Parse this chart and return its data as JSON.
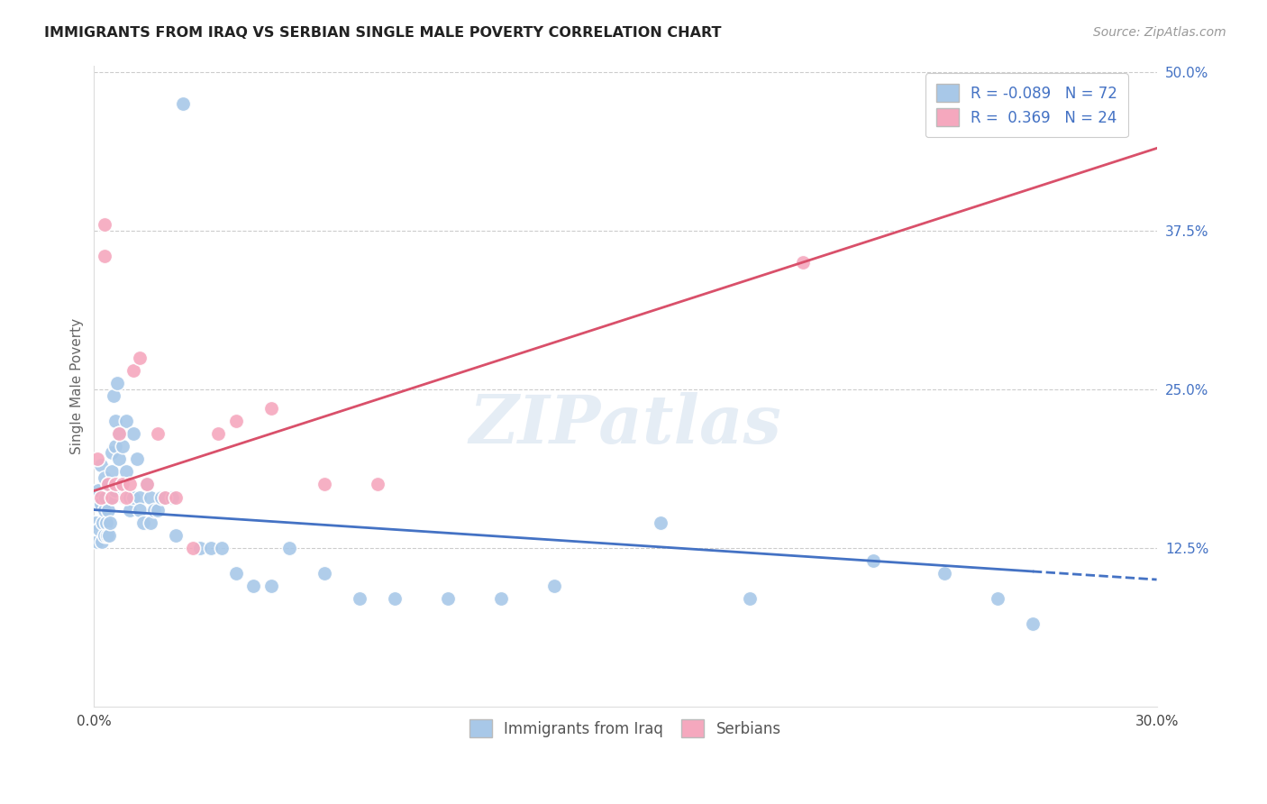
{
  "title": "IMMIGRANTS FROM IRAQ VS SERBIAN SINGLE MALE POVERTY CORRELATION CHART",
  "source": "Source: ZipAtlas.com",
  "ylabel": "Single Male Poverty",
  "xlim": [
    0.0,
    0.3
  ],
  "ylim": [
    0.0,
    0.505
  ],
  "yticks": [
    0.125,
    0.25,
    0.375,
    0.5
  ],
  "yticklabels": [
    "12.5%",
    "25.0%",
    "37.5%",
    "50.0%"
  ],
  "watermark": "ZIPatlas",
  "legend_r_iraq": "-0.089",
  "legend_n_iraq": "72",
  "legend_r_serbian": "0.369",
  "legend_n_serbian": "24",
  "iraq_color": "#a8c8e8",
  "serbian_color": "#f5a8be",
  "iraq_line_color": "#4472c4",
  "serbian_line_color": "#d9506a",
  "background_color": "#ffffff",
  "grid_color": "#cccccc",
  "iraq_x": [
    0.0005,
    0.001,
    0.001,
    0.0012,
    0.0015,
    0.002,
    0.002,
    0.0022,
    0.0025,
    0.003,
    0.003,
    0.003,
    0.0032,
    0.0035,
    0.0038,
    0.004,
    0.004,
    0.0042,
    0.0045,
    0.005,
    0.005,
    0.005,
    0.0055,
    0.006,
    0.006,
    0.006,
    0.0065,
    0.007,
    0.007,
    0.0075,
    0.008,
    0.0085,
    0.009,
    0.009,
    0.0095,
    0.01,
    0.01,
    0.011,
    0.011,
    0.012,
    0.013,
    0.013,
    0.014,
    0.015,
    0.016,
    0.016,
    0.017,
    0.018,
    0.019,
    0.02,
    0.022,
    0.023,
    0.025,
    0.03,
    0.033,
    0.036,
    0.04,
    0.045,
    0.05,
    0.055,
    0.065,
    0.075,
    0.085,
    0.1,
    0.115,
    0.13,
    0.16,
    0.185,
    0.22,
    0.24,
    0.255,
    0.265
  ],
  "iraq_y": [
    0.145,
    0.16,
    0.13,
    0.17,
    0.14,
    0.19,
    0.16,
    0.13,
    0.145,
    0.18,
    0.155,
    0.135,
    0.165,
    0.145,
    0.135,
    0.175,
    0.155,
    0.135,
    0.145,
    0.2,
    0.185,
    0.165,
    0.245,
    0.225,
    0.205,
    0.17,
    0.255,
    0.215,
    0.195,
    0.175,
    0.205,
    0.165,
    0.225,
    0.185,
    0.165,
    0.165,
    0.155,
    0.215,
    0.165,
    0.195,
    0.165,
    0.155,
    0.145,
    0.175,
    0.165,
    0.145,
    0.155,
    0.155,
    0.165,
    0.165,
    0.165,
    0.135,
    0.475,
    0.125,
    0.125,
    0.125,
    0.105,
    0.095,
    0.095,
    0.125,
    0.105,
    0.085,
    0.085,
    0.085,
    0.085,
    0.095,
    0.145,
    0.085,
    0.115,
    0.105,
    0.085,
    0.065
  ],
  "serbian_x": [
    0.001,
    0.002,
    0.003,
    0.003,
    0.004,
    0.005,
    0.006,
    0.007,
    0.008,
    0.009,
    0.01,
    0.011,
    0.013,
    0.015,
    0.018,
    0.02,
    0.023,
    0.028,
    0.035,
    0.04,
    0.05,
    0.065,
    0.08,
    0.2
  ],
  "serbian_y": [
    0.195,
    0.165,
    0.38,
    0.355,
    0.175,
    0.165,
    0.175,
    0.215,
    0.175,
    0.165,
    0.175,
    0.265,
    0.275,
    0.175,
    0.215,
    0.165,
    0.165,
    0.125,
    0.215,
    0.225,
    0.235,
    0.175,
    0.175,
    0.35
  ]
}
